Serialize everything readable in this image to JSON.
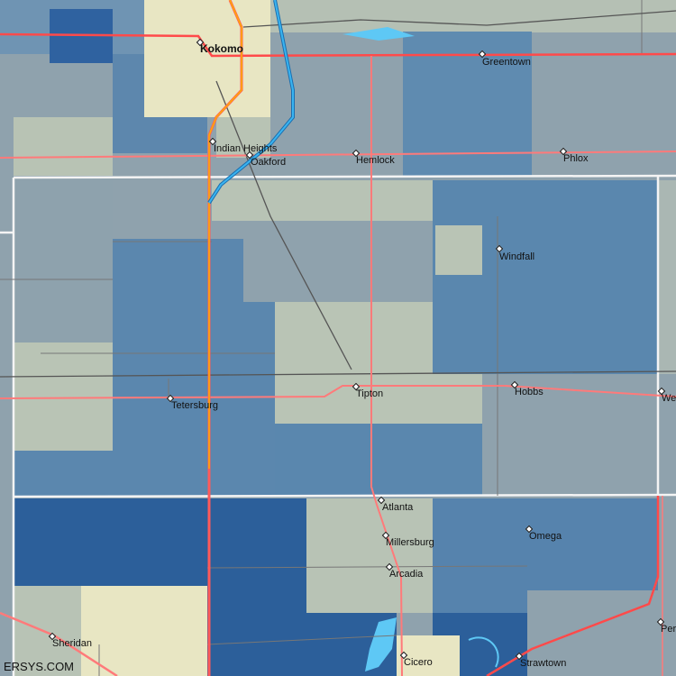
{
  "watermark": "ERSYS.COM",
  "colors": {
    "beige": "#e8e6c3",
    "light": "#b8c3b5",
    "greyblue": "#8fa2ad",
    "midblue": "#5a87ae",
    "darkblue": "#2c5f9a",
    "water": "#5ec8f5",
    "highway": "#ff5a5a",
    "interstate": "#2a9be0",
    "us_route": "#ffb000"
  },
  "places": [
    {
      "name": "Kokomo",
      "major": true
    },
    {
      "name": "Greentown"
    },
    {
      "name": "Indian Heights"
    },
    {
      "name": "Oakford"
    },
    {
      "name": "Hemlock"
    },
    {
      "name": "Phlox"
    },
    {
      "name": "Windfall"
    },
    {
      "name": "Tipton"
    },
    {
      "name": "Hobbs"
    },
    {
      "name": "Tetersburg"
    },
    {
      "name": "We"
    },
    {
      "name": "Atlanta"
    },
    {
      "name": "Millersburg"
    },
    {
      "name": "Omega"
    },
    {
      "name": "Arcadia"
    },
    {
      "name": "Sheridan"
    },
    {
      "name": "Cicero"
    },
    {
      "name": "Strawtown"
    },
    {
      "name": "Per"
    }
  ]
}
